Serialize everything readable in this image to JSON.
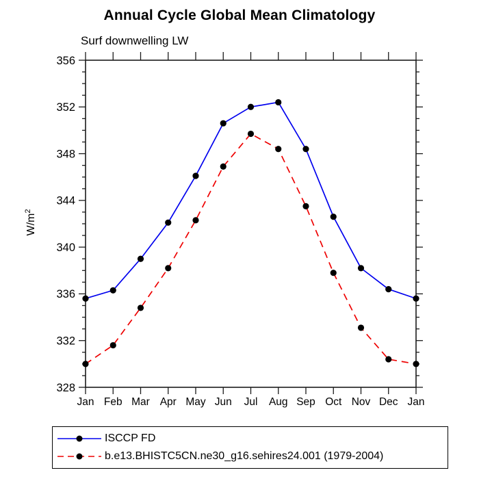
{
  "title": "Annual Cycle Global Mean Climatology",
  "subtitle": "Surf downwelling LW",
  "y_axis": {
    "label_base": "W/m",
    "label_exponent": "2"
  },
  "chart_data": {
    "type": "line",
    "x_categories": [
      "Jan",
      "Feb",
      "Mar",
      "Apr",
      "May",
      "Jun",
      "Jul",
      "Aug",
      "Sep",
      "Oct",
      "Nov",
      "Dec",
      "Jan"
    ],
    "series": [
      {
        "name": "ISCCP FD",
        "color": "#0000ee",
        "line_style": "solid",
        "marker": "filled-black-circle",
        "values": [
          335.6,
          336.3,
          339.0,
          342.1,
          346.1,
          350.6,
          352.0,
          352.4,
          348.4,
          342.6,
          338.2,
          336.4,
          335.6
        ]
      },
      {
        "name": "b.e13.BHISTC5CN.ne30_g16.sehires24.001 (1979-2004)",
        "color": "#ee0000",
        "line_style": "dashed",
        "marker": "filled-black-circle",
        "values": [
          330.0,
          331.6,
          334.8,
          338.2,
          342.3,
          346.9,
          349.7,
          348.4,
          343.5,
          337.8,
          333.1,
          330.4,
          330.0
        ]
      }
    ],
    "ylim": [
      328,
      356
    ],
    "y_major_ticks": [
      328,
      332,
      336,
      340,
      344,
      348,
      352,
      356
    ],
    "y_minor_step": 1,
    "x_tick_every_category": true,
    "grid": false,
    "legend_position": "bottom-left-boxed",
    "axis_color": "#1a1a1a",
    "marker_color": "#000000"
  }
}
